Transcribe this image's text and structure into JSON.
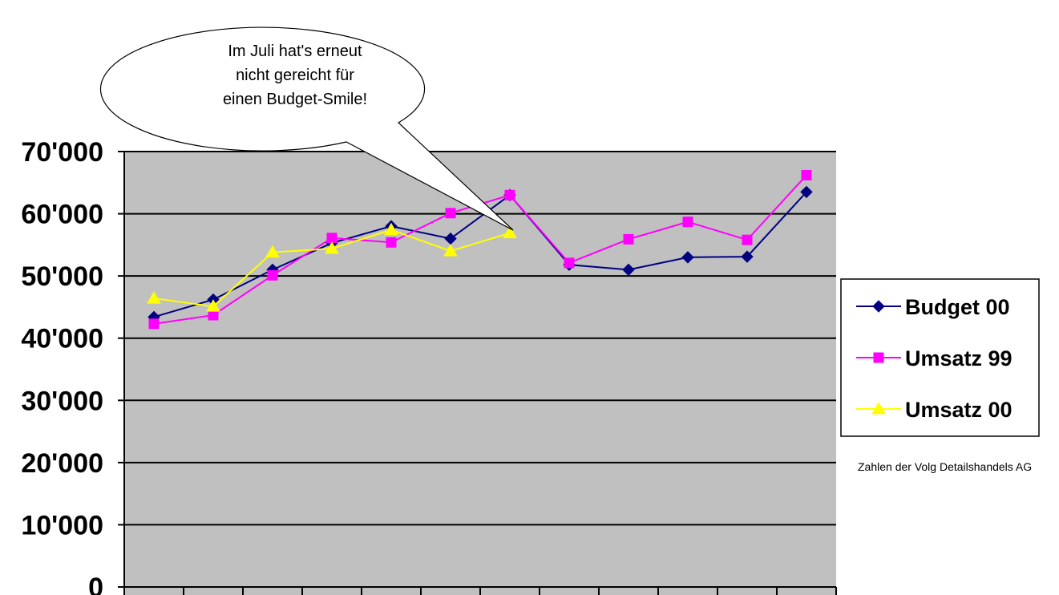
{
  "chart_data": {
    "type": "line",
    "categories": [
      "",
      "",
      "",
      "",
      "",
      "",
      "",
      "",
      "",
      "",
      "",
      ""
    ],
    "ylim": [
      0,
      70000
    ],
    "yticks": [
      0,
      10000,
      20000,
      30000,
      40000,
      50000,
      60000,
      70000
    ],
    "ytick_labels": [
      "0",
      "10'000",
      "20'000",
      "30'000",
      "40'000",
      "50'000",
      "60'000",
      "70'000"
    ],
    "grid": true,
    "plot_background": "#c0c0c0",
    "legend_position": "right",
    "series": [
      {
        "name": "Budget 00",
        "color": "#000080",
        "marker": "diamond",
        "values": [
          43400,
          46200,
          51000,
          55300,
          58000,
          56000,
          63000,
          51800,
          51000,
          53000,
          53100,
          63500
        ]
      },
      {
        "name": "Umsatz 99",
        "color": "#ff00ff",
        "marker": "square",
        "values": [
          42300,
          43700,
          50100,
          56100,
          55400,
          60100,
          63000,
          52100,
          55900,
          58700,
          55800,
          66200
        ]
      },
      {
        "name": "Umsatz 00",
        "color": "#ffff00",
        "marker": "triangle",
        "values": [
          46400,
          45100,
          53800,
          54400,
          57400,
          54000,
          56900,
          null,
          null,
          null,
          null,
          null
        ]
      }
    ],
    "annotation": {
      "lines": [
        "Im Juli hat's erneut",
        "nicht gereicht für",
        "einen Budget-Smile!"
      ],
      "points_to_index": 6
    },
    "source_note": "Zahlen der Volg Detailshandels AG"
  }
}
